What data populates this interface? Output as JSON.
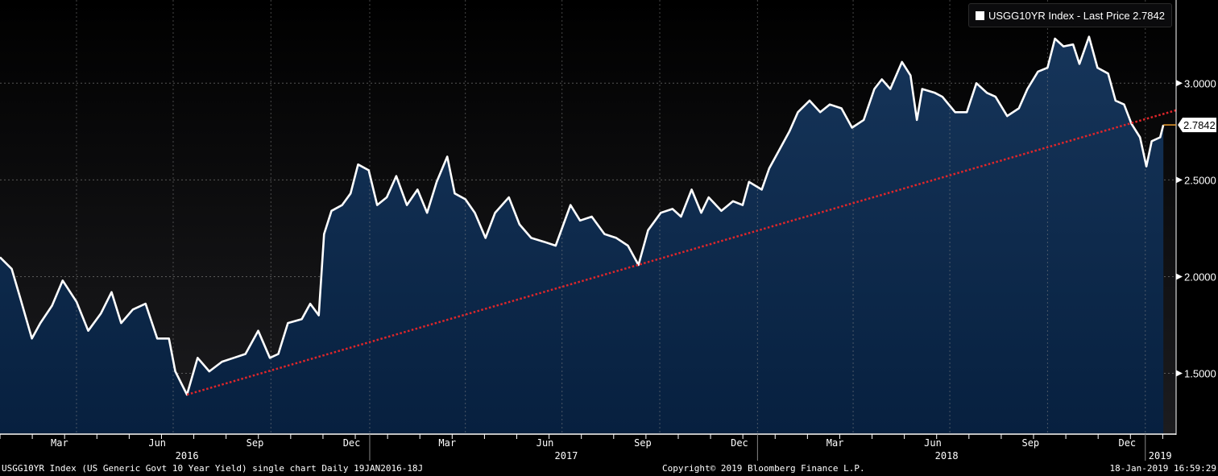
{
  "legend": {
    "label": "USGG10YR Index - Last Price 2.7842"
  },
  "footer": {
    "left": "USGG10YR Index (US Generic Govt 10 Year Yield) single chart  Daily 19JAN2016-18J",
    "center": "Copyright© 2019 Bloomberg Finance L.P.",
    "right": "18-Jan-2019 16:59:29"
  },
  "colors": {
    "line": "#ffffff",
    "fill_top": "#16355a",
    "fill_bottom": "#07203f",
    "trend": "#e0262a",
    "last_marker": "#f0a030"
  },
  "chart_data": {
    "type": "area",
    "title": "USGG10YR Index (US Generic Govt 10 Year Yield)",
    "x_unit": "days since 19JAN2016",
    "xlim": [
      0,
      1107
    ],
    "ylim": [
      1.19,
      3.43
    ],
    "yticks": [
      {
        "v": 1.5,
        "label": "1.5000"
      },
      {
        "v": 2.0,
        "label": "2.0000"
      },
      {
        "v": 2.5,
        "label": "2.5000"
      },
      {
        "v": 3.0,
        "label": "3.0000"
      }
    ],
    "last_value": {
      "v": 2.7842,
      "label": "2.7842"
    },
    "month_labels": [
      {
        "d": 56,
        "label": "Mar"
      },
      {
        "d": 148,
        "label": "Jun"
      },
      {
        "d": 240,
        "label": "Sep"
      },
      {
        "d": 331,
        "label": "Dec"
      },
      {
        "d": 421,
        "label": "Mar"
      },
      {
        "d": 513,
        "label": "Jun"
      },
      {
        "d": 605,
        "label": "Sep"
      },
      {
        "d": 696,
        "label": "Dec"
      },
      {
        "d": 786,
        "label": "Mar"
      },
      {
        "d": 878,
        "label": "Jun"
      },
      {
        "d": 970,
        "label": "Sep"
      },
      {
        "d": 1061,
        "label": "Dec"
      }
    ],
    "year_labels": [
      {
        "d": 176,
        "label": "2016"
      },
      {
        "d": 533,
        "label": "2017"
      },
      {
        "d": 891,
        "label": "2018"
      },
      {
        "d": 1092,
        "label": "2019"
      }
    ],
    "year_breaks": [
      348,
      713,
      1078
    ],
    "grid_days": [
      72,
      163,
      255,
      348,
      438,
      529,
      621,
      713,
      803,
      894,
      986,
      1078
    ],
    "trend": {
      "start": [
        176,
        1.39
      ],
      "end": [
        1107,
        2.86
      ]
    },
    "series": [
      {
        "name": "USGG10YR Index",
        "points": [
          [
            0,
            2.1
          ],
          [
            11,
            2.04
          ],
          [
            19,
            1.89
          ],
          [
            30,
            1.68
          ],
          [
            38,
            1.76
          ],
          [
            49,
            1.85
          ],
          [
            59,
            1.98
          ],
          [
            72,
            1.87
          ],
          [
            83,
            1.72
          ],
          [
            95,
            1.81
          ],
          [
            105,
            1.92
          ],
          [
            114,
            1.76
          ],
          [
            125,
            1.83
          ],
          [
            137,
            1.86
          ],
          [
            148,
            1.68
          ],
          [
            159,
            1.68
          ],
          [
            165,
            1.51
          ],
          [
            176,
            1.39
          ],
          [
            186,
            1.58
          ],
          [
            197,
            1.51
          ],
          [
            209,
            1.56
          ],
          [
            220,
            1.58
          ],
          [
            231,
            1.6
          ],
          [
            243,
            1.72
          ],
          [
            254,
            1.58
          ],
          [
            262,
            1.6
          ],
          [
            271,
            1.76
          ],
          [
            284,
            1.78
          ],
          [
            292,
            1.86
          ],
          [
            300,
            1.8
          ],
          [
            305,
            2.22
          ],
          [
            312,
            2.34
          ],
          [
            322,
            2.37
          ],
          [
            330,
            2.43
          ],
          [
            337,
            2.58
          ],
          [
            347,
            2.55
          ],
          [
            355,
            2.37
          ],
          [
            364,
            2.41
          ],
          [
            373,
            2.52
          ],
          [
            383,
            2.37
          ],
          [
            393,
            2.45
          ],
          [
            402,
            2.33
          ],
          [
            411,
            2.49
          ],
          [
            421,
            2.62
          ],
          [
            428,
            2.43
          ],
          [
            438,
            2.4
          ],
          [
            447,
            2.33
          ],
          [
            457,
            2.2
          ],
          [
            466,
            2.33
          ],
          [
            479,
            2.41
          ],
          [
            489,
            2.27
          ],
          [
            500,
            2.2
          ],
          [
            512,
            2.18
          ],
          [
            523,
            2.16
          ],
          [
            537,
            2.37
          ],
          [
            546,
            2.29
          ],
          [
            557,
            2.31
          ],
          [
            569,
            2.22
          ],
          [
            580,
            2.2
          ],
          [
            591,
            2.16
          ],
          [
            601,
            2.06
          ],
          [
            610,
            2.24
          ],
          [
            622,
            2.33
          ],
          [
            633,
            2.35
          ],
          [
            641,
            2.31
          ],
          [
            651,
            2.45
          ],
          [
            660,
            2.33
          ],
          [
            667,
            2.41
          ],
          [
            679,
            2.34
          ],
          [
            690,
            2.39
          ],
          [
            699,
            2.37
          ],
          [
            705,
            2.49
          ],
          [
            717,
            2.45
          ],
          [
            724,
            2.56
          ],
          [
            734,
            2.66
          ],
          [
            743,
            2.75
          ],
          [
            751,
            2.85
          ],
          [
            762,
            2.91
          ],
          [
            772,
            2.85
          ],
          [
            781,
            2.89
          ],
          [
            792,
            2.87
          ],
          [
            802,
            2.77
          ],
          [
            813,
            2.81
          ],
          [
            823,
            2.97
          ],
          [
            830,
            3.02
          ],
          [
            838,
            2.97
          ],
          [
            849,
            3.11
          ],
          [
            857,
            3.04
          ],
          [
            863,
            2.81
          ],
          [
            868,
            2.97
          ],
          [
            880,
            2.95
          ],
          [
            887,
            2.93
          ],
          [
            899,
            2.85
          ],
          [
            910,
            2.85
          ],
          [
            919,
            3.0
          ],
          [
            929,
            2.95
          ],
          [
            937,
            2.93
          ],
          [
            948,
            2.83
          ],
          [
            959,
            2.87
          ],
          [
            967,
            2.97
          ],
          [
            977,
            3.06
          ],
          [
            986,
            3.08
          ],
          [
            993,
            3.23
          ],
          [
            1001,
            3.19
          ],
          [
            1010,
            3.2
          ],
          [
            1016,
            3.1
          ],
          [
            1025,
            3.24
          ],
          [
            1033,
            3.08
          ],
          [
            1043,
            3.05
          ],
          [
            1050,
            2.91
          ],
          [
            1058,
            2.89
          ],
          [
            1065,
            2.79
          ],
          [
            1073,
            2.72
          ],
          [
            1079,
            2.57
          ],
          [
            1084,
            2.7
          ],
          [
            1092,
            2.72
          ],
          [
            1095,
            2.7842
          ]
        ]
      }
    ]
  }
}
